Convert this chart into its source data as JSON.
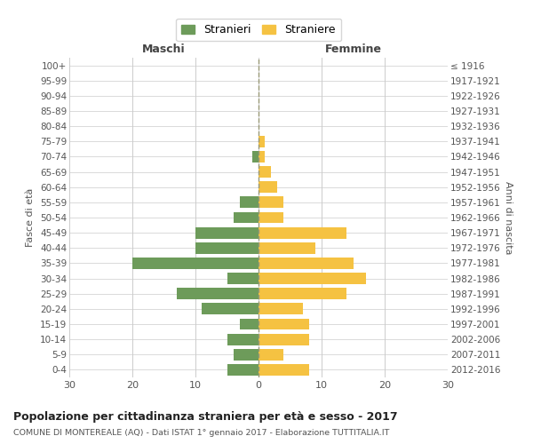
{
  "age_groups": [
    "100+",
    "95-99",
    "90-94",
    "85-89",
    "80-84",
    "75-79",
    "70-74",
    "65-69",
    "60-64",
    "55-59",
    "50-54",
    "45-49",
    "40-44",
    "35-39",
    "30-34",
    "25-29",
    "20-24",
    "15-19",
    "10-14",
    "5-9",
    "0-4"
  ],
  "birth_years": [
    "≤ 1916",
    "1917-1921",
    "1922-1926",
    "1927-1931",
    "1932-1936",
    "1937-1941",
    "1942-1946",
    "1947-1951",
    "1952-1956",
    "1957-1961",
    "1962-1966",
    "1967-1971",
    "1972-1976",
    "1977-1981",
    "1982-1986",
    "1987-1991",
    "1992-1996",
    "1997-2001",
    "2002-2006",
    "2007-2011",
    "2012-2016"
  ],
  "maschi": [
    0,
    0,
    0,
    0,
    0,
    0,
    1,
    0,
    0,
    3,
    4,
    10,
    10,
    20,
    5,
    13,
    9,
    3,
    5,
    4,
    5
  ],
  "femmine": [
    0,
    0,
    0,
    0,
    0,
    1,
    1,
    2,
    3,
    4,
    4,
    14,
    9,
    15,
    17,
    14,
    7,
    8,
    8,
    4,
    8
  ],
  "color_maschi": "#6d9b5a",
  "color_femmine": "#f5c242",
  "title": "Popolazione per cittadinanza straniera per età e sesso - 2017",
  "subtitle": "COMUNE DI MONTEREALE (AQ) - Dati ISTAT 1° gennaio 2017 - Elaborazione TUTTITALIA.IT",
  "ylabel_left": "Fasce di età",
  "ylabel_right": "Anni di nascita",
  "xlabel_left": "Maschi",
  "xlabel_right": "Femmine",
  "legend_maschi": "Stranieri",
  "legend_femmine": "Straniere",
  "xlim": 30,
  "background_color": "#ffffff",
  "grid_color": "#cccccc"
}
